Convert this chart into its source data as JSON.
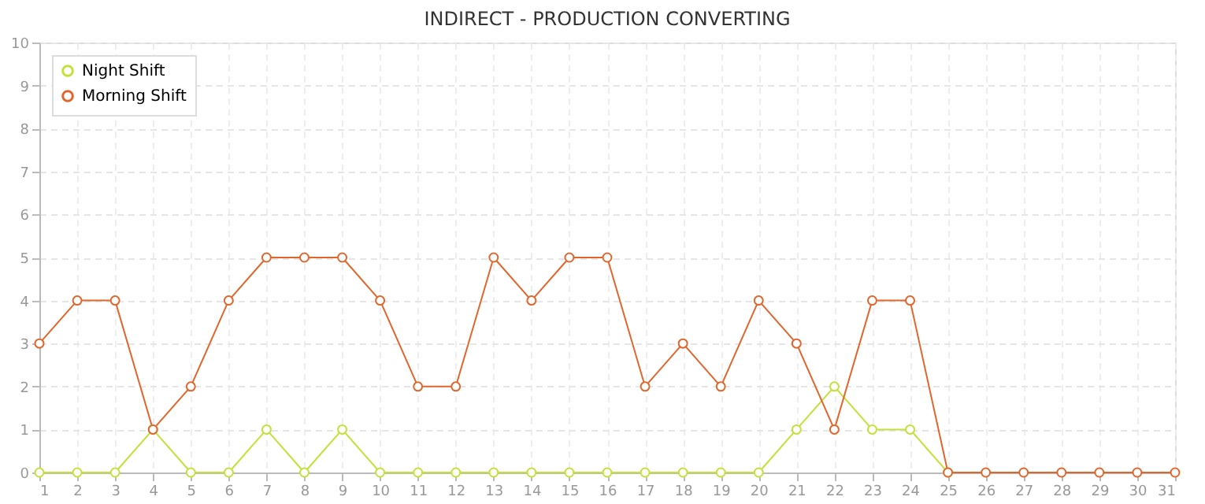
{
  "chart_data": {
    "type": "line",
    "title": "INDIRECT - PRODUCTION CONVERTING",
    "x": [
      1,
      2,
      3,
      4,
      5,
      6,
      7,
      8,
      9,
      10,
      11,
      12,
      13,
      14,
      15,
      16,
      17,
      18,
      19,
      20,
      21,
      22,
      23,
      24,
      25,
      26,
      27,
      28,
      29,
      30,
      31
    ],
    "series": [
      {
        "name": "Night Shift",
        "color": "#c5e03a",
        "values": [
          0,
          0,
          0,
          1,
          0,
          0,
          1,
          0,
          1,
          0,
          0,
          0,
          0,
          0,
          0,
          0,
          0,
          0,
          0,
          0,
          1,
          2,
          1,
          1,
          0,
          null,
          null,
          null,
          null,
          null,
          null
        ]
      },
      {
        "name": "Morning Shift",
        "color": "#e2662c",
        "values": [
          3,
          4,
          4,
          1,
          2,
          4,
          5,
          5,
          5,
          4,
          2,
          2,
          5,
          4,
          5,
          5,
          2,
          3,
          2,
          4,
          3,
          1,
          4,
          4,
          0,
          0,
          0,
          0,
          0,
          0,
          0
        ]
      }
    ],
    "xlim": [
      1,
      31
    ],
    "xticks": [
      1,
      2,
      3,
      4,
      5,
      6,
      7,
      8,
      9,
      10,
      11,
      12,
      13,
      14,
      15,
      16,
      17,
      18,
      19,
      20,
      21,
      22,
      23,
      24,
      25,
      26,
      27,
      28,
      29,
      30,
      31
    ],
    "ylim": [
      0,
      10
    ],
    "yticks": [
      0,
      1,
      2,
      3,
      4,
      5,
      6,
      7,
      8,
      9,
      10
    ],
    "grid": true,
    "legend": "top left",
    "marker": "circle",
    "line_style": "solid"
  }
}
